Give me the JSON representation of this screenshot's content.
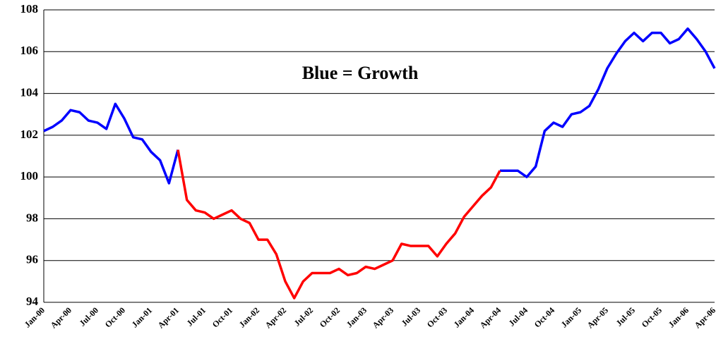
{
  "chart_data": {
    "type": "line",
    "annotation": "Blue = Growth",
    "categories": [
      "Jan-00",
      null,
      null,
      "Apr-00",
      null,
      null,
      "Jul-00",
      null,
      null,
      "Oct-00",
      null,
      null,
      "Jan-01",
      null,
      null,
      "Apr-01",
      null,
      null,
      "Jul-01",
      null,
      null,
      "Oct-01",
      null,
      null,
      "Jan-02",
      null,
      null,
      "Apr-02",
      null,
      null,
      "Jul-02",
      null,
      null,
      "Oct-02",
      null,
      null,
      "Jan-03",
      null,
      null,
      "Apr-03",
      null,
      null,
      "Jul-03",
      null,
      null,
      "Oct-03",
      null,
      null,
      "Jan-04",
      null,
      null,
      "Apr-04",
      null,
      null,
      "Jul-04",
      null,
      null,
      "Oct-04",
      null,
      null,
      "Jan-05",
      null,
      null,
      "Apr-05",
      null,
      null,
      "Jul-05",
      null,
      null,
      "Oct-05",
      null,
      null,
      "Jan-06",
      null,
      null,
      "Apr-06"
    ],
    "series": [
      {
        "color": "#0000ff",
        "values": [
          102.2,
          102.4,
          102.7,
          103.2,
          103.1,
          102.7,
          102.6,
          102.3,
          103.5,
          102.8,
          101.9,
          101.8,
          101.2,
          100.8,
          99.7,
          101.3,
          null,
          null,
          null,
          null,
          null,
          null,
          null,
          null,
          null,
          null,
          null,
          null,
          null,
          null,
          null,
          null,
          null,
          null,
          null,
          null,
          null,
          null,
          null,
          null,
          null,
          null,
          null,
          null,
          null,
          null,
          null,
          null,
          null,
          null,
          null,
          100.3,
          100.3,
          100.3,
          100.0,
          100.5,
          102.2,
          102.6,
          102.4,
          103.0,
          103.1,
          103.4,
          104.2,
          105.2,
          105.9,
          106.5,
          106.9,
          106.5,
          106.9,
          106.9,
          106.4,
          106.6,
          107.1,
          106.6,
          106.0,
          105.2
        ]
      },
      {
        "color": "#ff0000",
        "values": [
          null,
          null,
          null,
          null,
          null,
          null,
          null,
          null,
          null,
          null,
          null,
          null,
          null,
          null,
          null,
          101.3,
          98.9,
          98.4,
          98.3,
          98.0,
          98.2,
          98.4,
          98.0,
          97.8,
          97.0,
          97.0,
          96.3,
          95.0,
          94.2,
          95.0,
          95.4,
          95.4,
          95.4,
          95.6,
          95.3,
          95.4,
          95.7,
          95.6,
          95.8,
          96.0,
          96.8,
          96.7,
          96.7,
          96.7,
          96.2,
          96.8,
          97.3,
          98.1,
          98.6,
          99.1,
          99.5,
          100.3,
          null,
          null,
          null,
          null,
          null,
          null,
          null,
          null,
          null,
          null,
          null,
          null,
          null,
          null,
          null,
          null,
          null,
          null,
          null,
          null,
          null,
          null,
          null,
          null
        ]
      }
    ],
    "ylim": [
      94,
      108
    ],
    "yticks": [
      94,
      96,
      98,
      100,
      102,
      104,
      106,
      108
    ],
    "grid": true
  }
}
